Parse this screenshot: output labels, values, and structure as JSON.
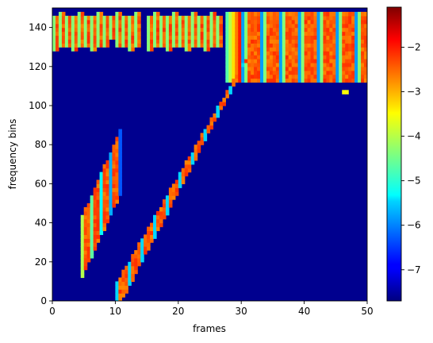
{
  "chart_data": {
    "type": "heatmap",
    "xlabel": "frames",
    "ylabel": "frequency bins",
    "xlim": [
      0,
      50
    ],
    "ylim": [
      0,
      150
    ],
    "x_ticks": [
      0,
      10,
      20,
      30,
      40,
      50
    ],
    "y_ticks": [
      0,
      20,
      40,
      60,
      80,
      100,
      120,
      140
    ],
    "x_tick_labels": [
      "0",
      "10",
      "20",
      "30",
      "40",
      "50"
    ],
    "y_tick_labels": [
      "0",
      "20",
      "40",
      "60",
      "80",
      "100",
      "120",
      "140"
    ],
    "colormap": "jet",
    "colorbar_range": [
      -7.7,
      -1.1
    ],
    "colorbar_ticks": [
      -7,
      -6,
      -5,
      -4,
      -3,
      -2
    ],
    "colorbar_tick_labels": [
      "−7",
      "−6",
      "−5",
      "−4",
      "−3",
      "−2"
    ],
    "background_value": -7.7,
    "regions": [
      {
        "name": "top-band",
        "x": [
          0,
          50
        ],
        "y": [
          126,
          149
        ],
        "peak": -1.8,
        "note": "irregular banded energy across all frames"
      },
      {
        "name": "wide-band-right",
        "x": [
          27,
          50
        ],
        "y": [
          112,
          149
        ],
        "peak": -1.6
      },
      {
        "name": "diagonal-short",
        "x": [
          4,
          11
        ],
        "y_start": [
          9,
          40
        ],
        "y_end": [
          54,
          86
        ],
        "peak": -1.4
      },
      {
        "name": "diagonal-long",
        "x": [
          10,
          31
        ],
        "y_start": [
          0,
          8
        ],
        "y_end": [
          74,
          124
        ],
        "peak": -1.3
      },
      {
        "name": "dot",
        "x": [
          46,
          47
        ],
        "y": [
          106,
          108
        ],
        "peak": -3.6
      }
    ],
    "grid": false,
    "colors": {
      "background": "#00008f",
      "colorbar_min": "#00007f",
      "colorbar_max": "#7f0000"
    }
  }
}
